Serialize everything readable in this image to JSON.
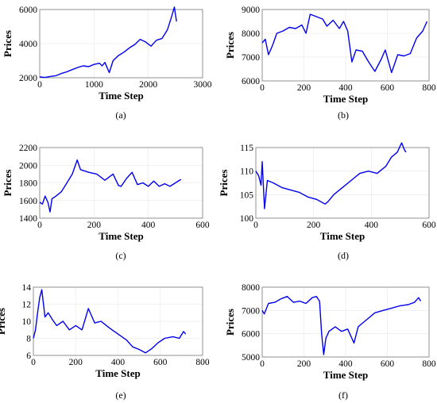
{
  "colors": {
    "line": "#0000ee"
  },
  "chart_data": [
    {
      "id": "a",
      "caption": "(a)",
      "type": "line",
      "title": "",
      "xlabel": "Time Step",
      "ylabel": "Prices",
      "xlim": [
        0,
        3000
      ],
      "ylim": [
        2000,
        6000
      ],
      "xticks": [
        0,
        1000,
        2000,
        3000
      ],
      "yticks": [
        2000,
        4000,
        6000
      ],
      "grid": true,
      "series": [
        {
          "values": [
            [
              0,
              2050
            ],
            [
              100,
              2020
            ],
            [
              200,
              2080
            ],
            [
              300,
              2120
            ],
            [
              400,
              2250
            ],
            [
              500,
              2350
            ],
            [
              600,
              2480
            ],
            [
              700,
              2600
            ],
            [
              800,
              2700
            ],
            [
              900,
              2650
            ],
            [
              1000,
              2780
            ],
            [
              1100,
              2850
            ],
            [
              1150,
              2700
            ],
            [
              1200,
              2900
            ],
            [
              1280,
              2300
            ],
            [
              1350,
              3000
            ],
            [
              1450,
              3300
            ],
            [
              1550,
              3500
            ],
            [
              1650,
              3750
            ],
            [
              1750,
              3950
            ],
            [
              1850,
              4250
            ],
            [
              1950,
              4100
            ],
            [
              2050,
              3850
            ],
            [
              2150,
              4200
            ],
            [
              2250,
              4300
            ],
            [
              2350,
              4800
            ],
            [
              2420,
              5500
            ],
            [
              2480,
              6150
            ],
            [
              2500,
              5700
            ],
            [
              2520,
              5300
            ]
          ]
        }
      ]
    },
    {
      "id": "b",
      "caption": "(b)",
      "type": "line",
      "title": "",
      "xlabel": "Time Step",
      "ylabel": "Prices",
      "xlim": [
        0,
        800
      ],
      "ylim": [
        6000,
        9000
      ],
      "xticks": [
        0,
        200,
        400,
        600,
        800
      ],
      "yticks": [
        6000,
        7000,
        8000,
        9000
      ],
      "grid": true,
      "series": [
        {
          "values": [
            [
              0,
              7600
            ],
            [
              15,
              7750
            ],
            [
              30,
              7100
            ],
            [
              50,
              7500
            ],
            [
              70,
              8000
            ],
            [
              100,
              8100
            ],
            [
              130,
              8250
            ],
            [
              160,
              8200
            ],
            [
              190,
              8350
            ],
            [
              210,
              8000
            ],
            [
              230,
              8800
            ],
            [
              260,
              8700
            ],
            [
              290,
              8600
            ],
            [
              310,
              8300
            ],
            [
              340,
              8550
            ],
            [
              370,
              8200
            ],
            [
              390,
              8500
            ],
            [
              410,
              8100
            ],
            [
              430,
              6800
            ],
            [
              450,
              7300
            ],
            [
              480,
              7250
            ],
            [
              510,
              6800
            ],
            [
              540,
              6400
            ],
            [
              570,
              6900
            ],
            [
              590,
              7300
            ],
            [
              620,
              6350
            ],
            [
              650,
              7100
            ],
            [
              680,
              7050
            ],
            [
              710,
              7150
            ],
            [
              740,
              7800
            ],
            [
              770,
              8100
            ],
            [
              790,
              8500
            ]
          ]
        }
      ]
    },
    {
      "id": "c",
      "caption": "(c)",
      "type": "line",
      "title": "",
      "xlabel": "Time Step",
      "ylabel": "Prices",
      "xlim": [
        0,
        600
      ],
      "ylim": [
        1400,
        2200
      ],
      "xticks": [
        0,
        200,
        400,
        600
      ],
      "yticks": [
        1400,
        1600,
        1800,
        2000,
        2200
      ],
      "grid": true,
      "series": [
        {
          "values": [
            [
              0,
              1580
            ],
            [
              10,
              1560
            ],
            [
              20,
              1650
            ],
            [
              30,
              1580
            ],
            [
              38,
              1470
            ],
            [
              45,
              1620
            ],
            [
              60,
              1650
            ],
            [
              80,
              1700
            ],
            [
              100,
              1800
            ],
            [
              120,
              1900
            ],
            [
              138,
              2060
            ],
            [
              150,
              1950
            ],
            [
              180,
              1920
            ],
            [
              210,
              1900
            ],
            [
              240,
              1830
            ],
            [
              270,
              1900
            ],
            [
              290,
              1770
            ],
            [
              300,
              1760
            ],
            [
              320,
              1850
            ],
            [
              340,
              1920
            ],
            [
              360,
              1780
            ],
            [
              380,
              1800
            ],
            [
              400,
              1760
            ],
            [
              420,
              1820
            ],
            [
              440,
              1760
            ],
            [
              460,
              1790
            ],
            [
              480,
              1760
            ],
            [
              500,
              1800
            ],
            [
              520,
              1840
            ]
          ]
        }
      ]
    },
    {
      "id": "d",
      "caption": "(d)",
      "type": "line",
      "title": "",
      "xlabel": "Time Step",
      "ylabel": "Prices",
      "xlim": [
        0,
        600
      ],
      "ylim": [
        100,
        115
      ],
      "xticks": [
        0,
        200,
        400,
        600
      ],
      "yticks": [
        100,
        105,
        110,
        115
      ],
      "grid": true,
      "series": [
        {
          "values": [
            [
              0,
              110
            ],
            [
              10,
              109
            ],
            [
              18,
              107
            ],
            [
              22,
              112
            ],
            [
              30,
              102
            ],
            [
              40,
              108
            ],
            [
              60,
              107.5
            ],
            [
              90,
              106.5
            ],
            [
              120,
              106
            ],
            [
              150,
              105.5
            ],
            [
              180,
              104.5
            ],
            [
              210,
              104
            ],
            [
              240,
              103
            ],
            [
              250,
              103.5
            ],
            [
              270,
              105
            ],
            [
              300,
              106.5
            ],
            [
              330,
              108
            ],
            [
              360,
              109.5
            ],
            [
              390,
              110
            ],
            [
              420,
              109.5
            ],
            [
              450,
              111
            ],
            [
              470,
              113
            ],
            [
              490,
              114
            ],
            [
              505,
              116
            ],
            [
              515,
              114.5
            ],
            [
              520,
              114
            ]
          ]
        }
      ]
    },
    {
      "id": "e",
      "caption": "(e)",
      "type": "line",
      "title": "",
      "xlabel": "Time Step",
      "ylabel": "Prices",
      "xlim": [
        0,
        800
      ],
      "ylim": [
        6,
        14
      ],
      "xticks": [
        0,
        200,
        400,
        600,
        800
      ],
      "yticks": [
        6,
        8,
        10,
        12,
        14
      ],
      "grid": true,
      "series": [
        {
          "values": [
            [
              0,
              8
            ],
            [
              10,
              9
            ],
            [
              20,
              11
            ],
            [
              30,
              12.8
            ],
            [
              40,
              13.7
            ],
            [
              55,
              10.5
            ],
            [
              70,
              11
            ],
            [
              90,
              10.2
            ],
            [
              110,
              9.5
            ],
            [
              140,
              10
            ],
            [
              170,
              9
            ],
            [
              200,
              9.5
            ],
            [
              230,
              9
            ],
            [
              260,
              11.5
            ],
            [
              290,
              9.8
            ],
            [
              320,
              10
            ],
            [
              360,
              9.2
            ],
            [
              400,
              8.5
            ],
            [
              440,
              7.8
            ],
            [
              470,
              7
            ],
            [
              500,
              6.7
            ],
            [
              530,
              6.3
            ],
            [
              560,
              6.8
            ],
            [
              590,
              7.5
            ],
            [
              620,
              8
            ],
            [
              660,
              8.2
            ],
            [
              690,
              8
            ],
            [
              710,
              8.8
            ],
            [
              720,
              8.5
            ]
          ]
        }
      ]
    },
    {
      "id": "f",
      "caption": "(f)",
      "type": "line",
      "title": "",
      "xlabel": "Time Step",
      "ylabel": "Prices",
      "xlim": [
        0,
        800
      ],
      "ylim": [
        5000,
        8000
      ],
      "xticks": [
        0,
        200,
        400,
        600,
        800
      ],
      "yticks": [
        5000,
        6000,
        7000,
        8000
      ],
      "grid": true,
      "series": [
        {
          "values": [
            [
              0,
              7000
            ],
            [
              10,
              6850
            ],
            [
              30,
              7300
            ],
            [
              60,
              7350
            ],
            [
              90,
              7500
            ],
            [
              120,
              7600
            ],
            [
              150,
              7350
            ],
            [
              180,
              7400
            ],
            [
              210,
              7300
            ],
            [
              240,
              7550
            ],
            [
              260,
              7600
            ],
            [
              275,
              7400
            ],
            [
              285,
              6000
            ],
            [
              295,
              5100
            ],
            [
              305,
              5800
            ],
            [
              320,
              6100
            ],
            [
              350,
              6300
            ],
            [
              380,
              6100
            ],
            [
              410,
              6200
            ],
            [
              440,
              5600
            ],
            [
              460,
              6300
            ],
            [
              500,
              6600
            ],
            [
              540,
              6900
            ],
            [
              580,
              7000
            ],
            [
              620,
              7100
            ],
            [
              660,
              7200
            ],
            [
              700,
              7250
            ],
            [
              730,
              7350
            ],
            [
              750,
              7550
            ],
            [
              760,
              7400
            ]
          ]
        }
      ]
    }
  ]
}
